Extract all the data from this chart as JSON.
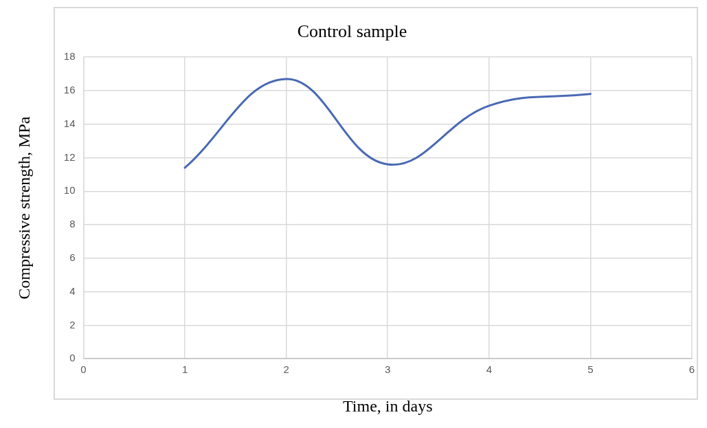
{
  "chart_data": {
    "type": "line",
    "title": "Control sample",
    "xlabel": "Time, in days",
    "ylabel": "Compressive strength, MPa",
    "x": [
      1,
      2,
      3,
      4,
      5
    ],
    "series": [
      {
        "color": "#4a69b3",
        "values": [
          11.4,
          16.7,
          11.6,
          15.1,
          15.8
        ]
      }
    ],
    "xlim": [
      0,
      6
    ],
    "xticks": [
      0,
      1,
      2,
      3,
      4,
      5,
      6
    ],
    "ylim": [
      0,
      18
    ],
    "yticks": [
      0,
      2,
      4,
      6,
      8,
      10,
      12,
      14,
      16,
      18
    ],
    "grid": true,
    "legend": false,
    "marker": "none",
    "line_style": "solid"
  }
}
